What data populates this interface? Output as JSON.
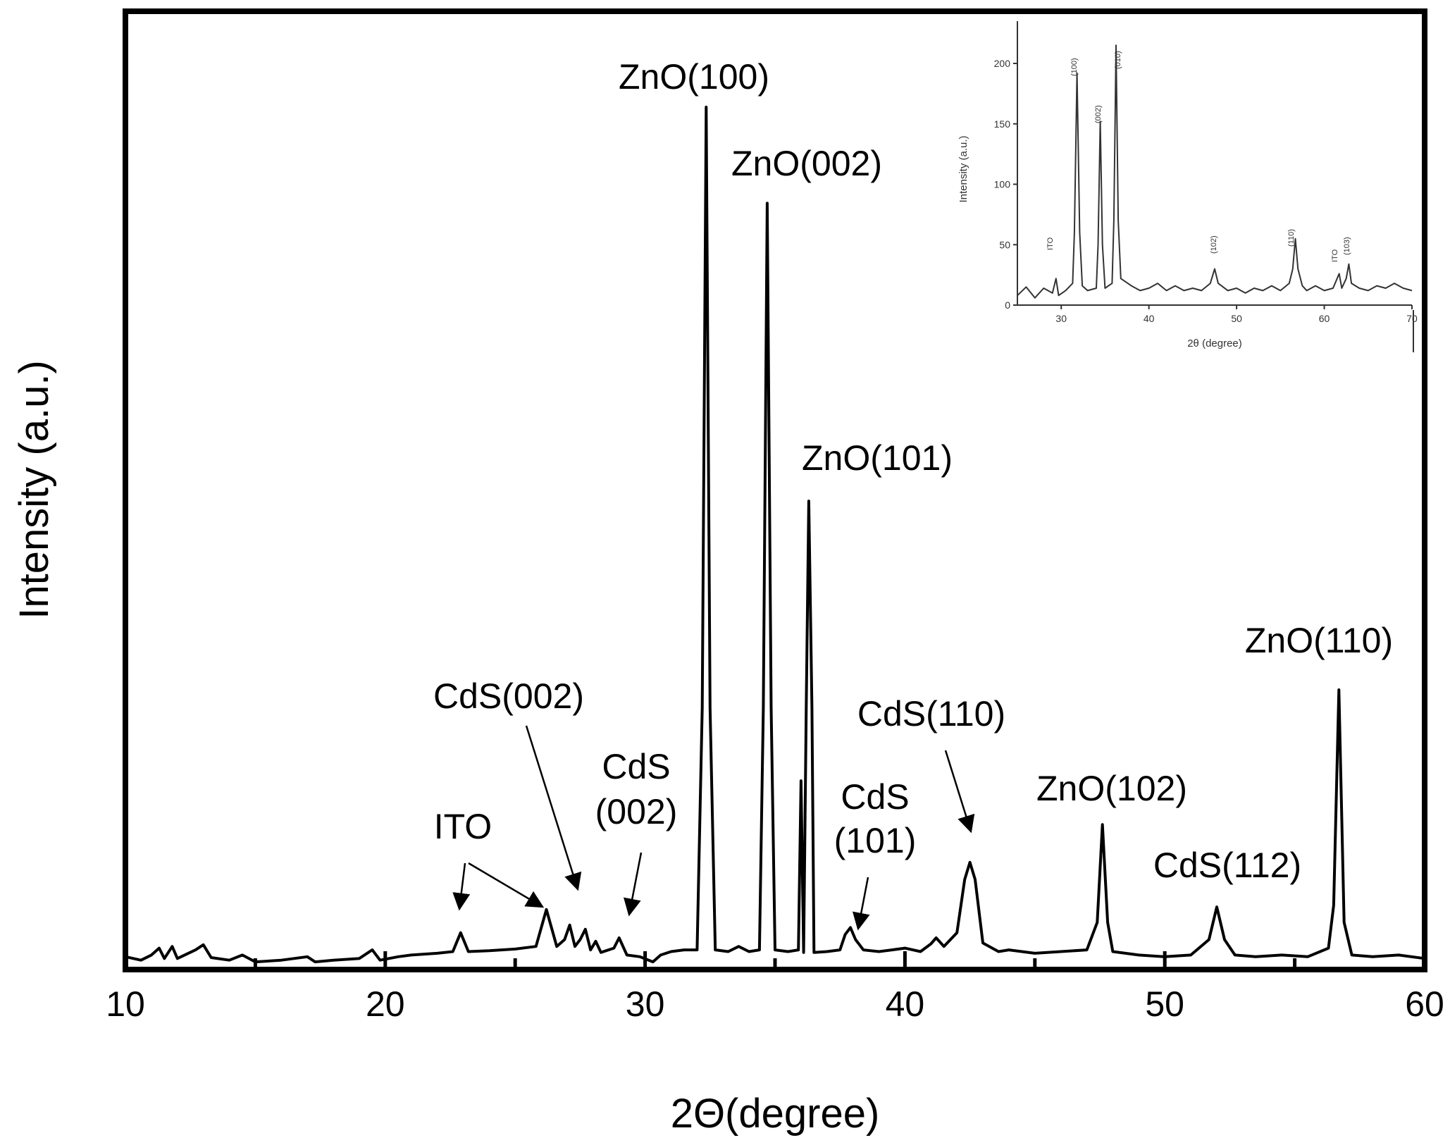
{
  "chart_data": [
    {
      "type": "line",
      "title": "",
      "xlabel": "2Θ(degree)",
      "ylabel": "Intensity (a.u.)",
      "xlim": [
        10,
        60
      ],
      "ylim": [
        0,
        1.0
      ],
      "x_ticks": [
        10,
        20,
        30,
        40,
        50,
        60
      ],
      "y_ticks": [],
      "grid": false,
      "legend": "none",
      "line_color": "#000000",
      "series": [
        {
          "values_xy": [
            [
              10.0,
              0.01
            ],
            [
              10.6,
              0.006
            ],
            [
              11.0,
              0.012
            ],
            [
              11.3,
              0.02
            ],
            [
              11.5,
              0.008
            ],
            [
              11.8,
              0.022
            ],
            [
              12.0,
              0.008
            ],
            [
              12.7,
              0.018
            ],
            [
              13.0,
              0.024
            ],
            [
              13.3,
              0.009
            ],
            [
              14.0,
              0.006
            ],
            [
              14.5,
              0.012
            ],
            [
              15.0,
              0.004
            ],
            [
              16.0,
              0.006
            ],
            [
              17.0,
              0.01
            ],
            [
              17.3,
              0.004
            ],
            [
              18.0,
              0.006
            ],
            [
              19.0,
              0.008
            ],
            [
              19.5,
              0.018
            ],
            [
              19.8,
              0.006
            ],
            [
              20.5,
              0.01
            ],
            [
              21.0,
              0.012
            ],
            [
              22.0,
              0.014
            ],
            [
              22.6,
              0.016
            ],
            [
              22.9,
              0.038
            ],
            [
              23.2,
              0.016
            ],
            [
              24.0,
              0.017
            ],
            [
              25.0,
              0.019
            ],
            [
              25.8,
              0.022
            ],
            [
              26.2,
              0.065
            ],
            [
              26.6,
              0.022
            ],
            [
              26.9,
              0.03
            ],
            [
              27.1,
              0.047
            ],
            [
              27.3,
              0.022
            ],
            [
              27.5,
              0.03
            ],
            [
              27.7,
              0.042
            ],
            [
              27.9,
              0.018
            ],
            [
              28.1,
              0.028
            ],
            [
              28.3,
              0.015
            ],
            [
              28.8,
              0.02
            ],
            [
              29.0,
              0.032
            ],
            [
              29.3,
              0.012
            ],
            [
              29.8,
              0.01
            ],
            [
              30.3,
              0.004
            ],
            [
              30.6,
              0.012
            ],
            [
              31.0,
              0.016
            ],
            [
              31.5,
              0.018
            ],
            [
              32.0,
              0.018
            ],
            [
              32.2,
              0.3
            ],
            [
              32.35,
              1.0
            ],
            [
              32.5,
              0.3
            ],
            [
              32.7,
              0.018
            ],
            [
              33.2,
              0.016
            ],
            [
              33.6,
              0.022
            ],
            [
              34.0,
              0.016
            ],
            [
              34.4,
              0.018
            ],
            [
              34.55,
              0.3
            ],
            [
              34.7,
              0.888
            ],
            [
              34.85,
              0.3
            ],
            [
              35.0,
              0.018
            ],
            [
              35.5,
              0.016
            ],
            [
              35.9,
              0.018
            ],
            [
              36.0,
              0.215
            ],
            [
              36.1,
              0.015
            ],
            [
              36.2,
              0.3
            ],
            [
              36.3,
              0.541
            ],
            [
              36.42,
              0.3
            ],
            [
              36.5,
              0.015
            ],
            [
              37.0,
              0.016
            ],
            [
              37.5,
              0.018
            ],
            [
              37.7,
              0.036
            ],
            [
              37.9,
              0.044
            ],
            [
              38.1,
              0.03
            ],
            [
              38.4,
              0.018
            ],
            [
              39.0,
              0.016
            ],
            [
              39.5,
              0.018
            ],
            [
              40.0,
              0.02
            ],
            [
              40.6,
              0.016
            ],
            [
              41.0,
              0.025
            ],
            [
              41.2,
              0.032
            ],
            [
              41.5,
              0.022
            ],
            [
              42.0,
              0.038
            ],
            [
              42.3,
              0.1
            ],
            [
              42.5,
              0.12
            ],
            [
              42.7,
              0.1
            ],
            [
              43.0,
              0.026
            ],
            [
              43.6,
              0.016
            ],
            [
              44.0,
              0.018
            ],
            [
              45.0,
              0.014
            ],
            [
              46.0,
              0.016
            ],
            [
              47.0,
              0.018
            ],
            [
              47.4,
              0.05
            ],
            [
              47.6,
              0.164
            ],
            [
              47.8,
              0.05
            ],
            [
              48.0,
              0.016
            ],
            [
              49.0,
              0.012
            ],
            [
              50.0,
              0.01
            ],
            [
              51.0,
              0.012
            ],
            [
              51.7,
              0.03
            ],
            [
              52.0,
              0.068
            ],
            [
              52.3,
              0.03
            ],
            [
              52.7,
              0.012
            ],
            [
              53.5,
              0.01
            ],
            [
              54.5,
              0.012
            ],
            [
              55.5,
              0.01
            ],
            [
              56.3,
              0.02
            ],
            [
              56.5,
              0.07
            ],
            [
              56.7,
              0.321
            ],
            [
              56.9,
              0.05
            ],
            [
              57.2,
              0.012
            ],
            [
              58.0,
              0.01
            ],
            [
              59.0,
              0.012
            ],
            [
              60.0,
              0.008
            ]
          ]
        }
      ],
      "annotations": [
        {
          "lines": [
            "ZnO(100)"
          ]
        },
        {
          "lines": [
            "ZnO(002)"
          ]
        },
        {
          "lines": [
            "ZnO(101)"
          ]
        },
        {
          "lines": [
            "ZnO(110)"
          ]
        },
        {
          "lines": [
            "ZnO(102)"
          ]
        },
        {
          "lines": [
            "CdS(112)"
          ]
        },
        {
          "lines": [
            "CdS(110)"
          ]
        },
        {
          "lines": [
            "CdS",
            "(101)"
          ]
        },
        {
          "lines": [
            "CdS",
            "(002)"
          ]
        },
        {
          "lines": [
            "CdS(002)"
          ]
        },
        {
          "lines": [
            "ITO"
          ]
        }
      ]
    },
    {
      "type": "line",
      "title": "",
      "xlabel": "2θ (degree)",
      "ylabel": "Intensity (a.u.)",
      "xlim": [
        25,
        70
      ],
      "ylim": [
        0,
        235
      ],
      "x_ticks": [
        30,
        40,
        50,
        60,
        70
      ],
      "y_ticks": [
        0,
        50,
        100,
        150,
        200
      ],
      "grid": false,
      "legend": "none",
      "series": [
        {
          "values_xy": [
            [
              25.0,
              8
            ],
            [
              26.0,
              15
            ],
            [
              27.0,
              6
            ],
            [
              28.0,
              14
            ],
            [
              29.0,
              10
            ],
            [
              29.4,
              22
            ],
            [
              29.7,
              8
            ],
            [
              30.5,
              12
            ],
            [
              31.3,
              18
            ],
            [
              31.5,
              60
            ],
            [
              31.8,
              192
            ],
            [
              32.1,
              60
            ],
            [
              32.4,
              16
            ],
            [
              33.0,
              12
            ],
            [
              34.0,
              14
            ],
            [
              34.2,
              50
            ],
            [
              34.45,
              152
            ],
            [
              34.7,
              50
            ],
            [
              35.0,
              14
            ],
            [
              35.8,
              18
            ],
            [
              36.0,
              70
            ],
            [
              36.25,
              215
            ],
            [
              36.5,
              70
            ],
            [
              36.8,
              22
            ],
            [
              38.0,
              16
            ],
            [
              39.0,
              12
            ],
            [
              40.0,
              14
            ],
            [
              41.0,
              18
            ],
            [
              42.0,
              12
            ],
            [
              43.0,
              16
            ],
            [
              44.0,
              12
            ],
            [
              45.0,
              14
            ],
            [
              46.0,
              12
            ],
            [
              47.0,
              18
            ],
            [
              47.5,
              30
            ],
            [
              47.9,
              18
            ],
            [
              49.0,
              12
            ],
            [
              50.0,
              14
            ],
            [
              51.0,
              10
            ],
            [
              52.0,
              14
            ],
            [
              53.0,
              12
            ],
            [
              54.0,
              16
            ],
            [
              55.0,
              12
            ],
            [
              56.0,
              18
            ],
            [
              56.4,
              30
            ],
            [
              56.7,
              55
            ],
            [
              57.0,
              30
            ],
            [
              57.5,
              16
            ],
            [
              58.0,
              12
            ],
            [
              59.0,
              16
            ],
            [
              60.0,
              12
            ],
            [
              61.0,
              14
            ],
            [
              61.7,
              26
            ],
            [
              62.0,
              14
            ],
            [
              62.5,
              22
            ],
            [
              62.8,
              34
            ],
            [
              63.1,
              18
            ],
            [
              64.0,
              14
            ],
            [
              65.0,
              12
            ],
            [
              66.0,
              16
            ],
            [
              67.0,
              14
            ],
            [
              68.0,
              18
            ],
            [
              69.0,
              14
            ],
            [
              70.0,
              12
            ]
          ]
        }
      ],
      "annotations": [
        {
          "text": "ITO"
        },
        {
          "text": "(100)"
        },
        {
          "text": "(002)"
        },
        {
          "text": "(010)"
        },
        {
          "text": "(102)"
        },
        {
          "text": "(110)"
        },
        {
          "text": "ITO"
        },
        {
          "text": "(103)"
        }
      ]
    }
  ]
}
